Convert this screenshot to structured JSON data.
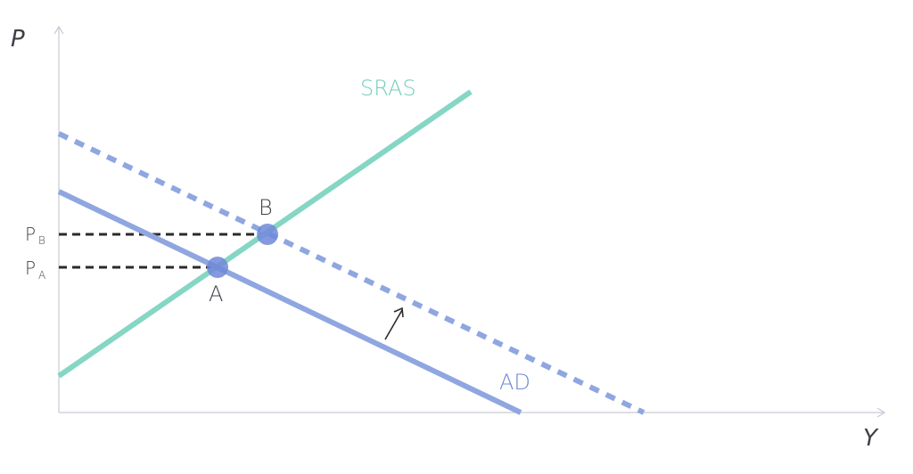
{
  "diagram": {
    "axes": {
      "y_label": "P",
      "x_label": "Y"
    },
    "curves": {
      "sras": {
        "label": "SRAS",
        "color": "#85d6c5"
      },
      "ad": {
        "label": "AD",
        "color": "#8fa6e0"
      },
      "ad_shifted": {
        "label": "",
        "color": "#8fa6e0"
      }
    },
    "points": {
      "a": {
        "label": "A",
        "color": "#7088d8"
      },
      "b": {
        "label": "B",
        "color": "#7088d8"
      }
    },
    "price_levels": {
      "pa": {
        "main": "P",
        "sub": "A"
      },
      "pb": {
        "main": "P",
        "sub": "B"
      }
    },
    "label_colors": {
      "sras": "#73cdb9",
      "ad": "#6c88d2",
      "text": "#3f4147"
    }
  }
}
